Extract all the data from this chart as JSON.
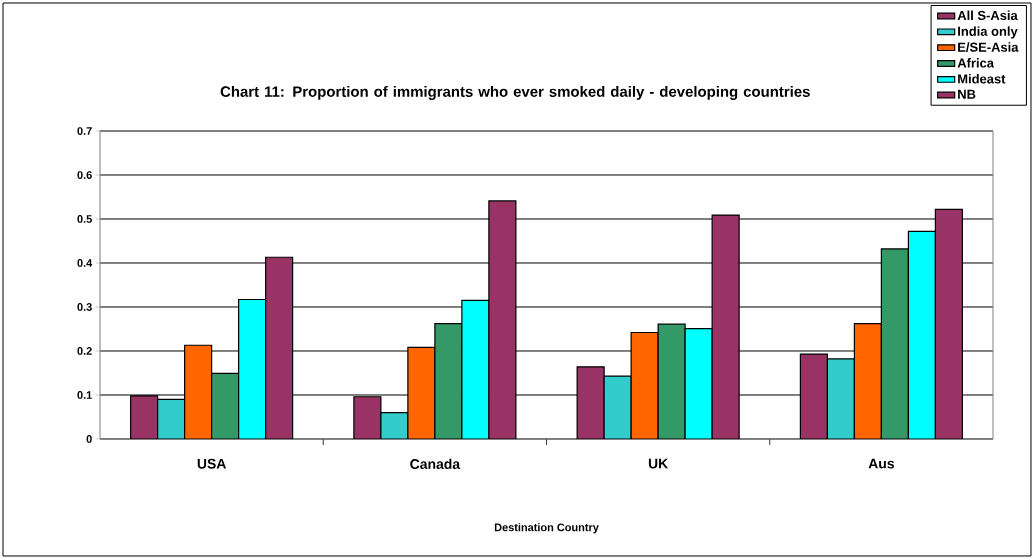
{
  "chart_data": {
    "type": "bar",
    "title": "Chart 11: Proportion of immigrants who ever smoked daily - developing countries",
    "xlabel": "Destination Country",
    "categories": [
      "USA",
      "Canada",
      "UK",
      "Aus"
    ],
    "series": [
      {
        "name": "All S-Asia",
        "color": "#993366",
        "values": [
          0.098,
          0.096,
          0.164,
          0.193
        ]
      },
      {
        "name": "India only",
        "color": "#33cccc",
        "values": [
          0.09,
          0.06,
          0.143,
          0.182
        ]
      },
      {
        "name": "E/SE-Asia",
        "color": "#ff6600",
        "values": [
          0.213,
          0.208,
          0.242,
          0.262
        ]
      },
      {
        "name": "Africa",
        "color": "#339966",
        "values": [
          0.149,
          0.262,
          0.261,
          0.432
        ]
      },
      {
        "name": "Mideast",
        "color": "#00ffff",
        "values": [
          0.317,
          0.315,
          0.251,
          0.472
        ]
      },
      {
        "name": "NB",
        "color": "#993366",
        "values": [
          0.413,
          0.541,
          0.509,
          0.522
        ]
      }
    ],
    "ylim": [
      0,
      0.7
    ],
    "yticks": [
      0,
      0.1,
      0.2,
      0.3,
      0.4,
      0.5,
      0.6,
      0.7
    ],
    "grid": "y",
    "legend": "top right"
  }
}
